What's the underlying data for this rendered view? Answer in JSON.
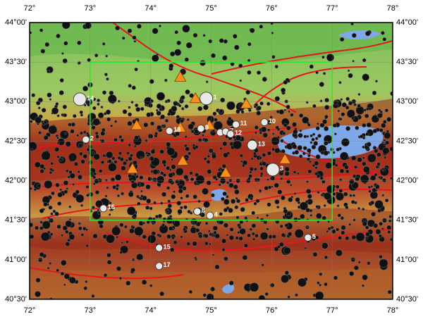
{
  "map": {
    "x_ticks": [
      {
        "value": 72,
        "label": "72°"
      },
      {
        "value": 73,
        "label": "73°"
      },
      {
        "value": 74,
        "label": "74°"
      },
      {
        "value": 75,
        "label": "75°"
      },
      {
        "value": 76,
        "label": "76°"
      },
      {
        "value": 77,
        "label": "77°"
      },
      {
        "value": 78,
        "label": "78°"
      }
    ],
    "y_ticks": [
      {
        "value": 44,
        "label": "44°00'"
      },
      {
        "value": 43.5,
        "label": "43°30'"
      },
      {
        "value": 43,
        "label": "43°00'"
      },
      {
        "value": 42.5,
        "label": "42°30'"
      },
      {
        "value": 42,
        "label": "42°00'"
      },
      {
        "value": 41.5,
        "label": "41°30'"
      },
      {
        "value": 41,
        "label": "41°00'"
      },
      {
        "value": 40.5,
        "label": "40°30'"
      }
    ],
    "xlim": [
      72,
      78
    ],
    "ylim": [
      40.5,
      44
    ],
    "study_area": {
      "lon": [
        73,
        77
      ],
      "lat": [
        41.5,
        43.5
      ],
      "color": "#2ee82e"
    },
    "stations": [
      {
        "lon": 74.49,
        "lat": 43.31
      },
      {
        "lon": 74.74,
        "lat": 43.04
      },
      {
        "lon": 75.58,
        "lat": 42.97
      },
      {
        "lon": 73.77,
        "lat": 42.7
      },
      {
        "lon": 74.49,
        "lat": 42.67
      },
      {
        "lon": 74.97,
        "lat": 42.7
      },
      {
        "lon": 76.22,
        "lat": 42.27
      },
      {
        "lon": 74.53,
        "lat": 42.25
      },
      {
        "lon": 73.7,
        "lat": 42.15
      },
      {
        "lon": 75.24,
        "lat": 42.1
      }
    ],
    "events": [
      {
        "label": "1",
        "lon": 74.92,
        "lat": 43.04
      },
      {
        "label": "2",
        "lon": 72.93,
        "lat": 42.52
      },
      {
        "label": "3",
        "lon": 76.02,
        "lat": 42.14
      },
      {
        "label": "4",
        "lon": 74.98,
        "lat": 41.56
      },
      {
        "label": "5",
        "lon": 76.6,
        "lat": 41.28
      },
      {
        "label": "6",
        "lon": 75.15,
        "lat": 42.61
      },
      {
        "label": "7",
        "lon": 75.24,
        "lat": 42.62
      },
      {
        "label": "8",
        "lon": 74.77,
        "lat": 41.61
      },
      {
        "label": "9",
        "lon": 74.83,
        "lat": 42.66
      },
      {
        "label": "10",
        "lon": 75.88,
        "lat": 42.74
      },
      {
        "label": "11",
        "lon": 75.41,
        "lat": 42.71
      },
      {
        "label": "12",
        "lon": 75.32,
        "lat": 42.59
      },
      {
        "label": "13",
        "lon": 75.68,
        "lat": 42.45
      },
      {
        "label": "14",
        "lon": 72.83,
        "lat": 43.03
      },
      {
        "label": "15",
        "lon": 74.14,
        "lat": 41.15
      },
      {
        "label": "16",
        "lon": 73.22,
        "lat": 41.65
      },
      {
        "label": "17",
        "lon": 74.14,
        "lat": 40.92
      },
      {
        "label": "18",
        "lon": 74.31,
        "lat": 42.63
      }
    ]
  }
}
